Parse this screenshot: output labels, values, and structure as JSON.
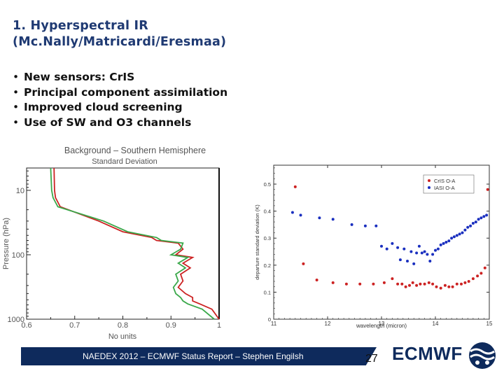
{
  "slide": {
    "title_line1": "1. Hyperspectral IR",
    "title_line2": "(Mc.Nally/Matricardi/Eresmaa)",
    "bullets": [
      "New sensors: CrIS",
      "Principal component assimilation",
      "Improved cloud screening",
      "Use of SW and O3 channels"
    ]
  },
  "footer": {
    "text": "NAEDEX 2012 – ECMWF Status Report – Stephen Engilsh",
    "page_number": "27",
    "brand": "ECMWF"
  },
  "colors": {
    "navy": "#0e2a5c",
    "title": "#1f3a73",
    "red_series": "#cc2222",
    "green_series": "#3aa84a",
    "blue_series": "#1a2fbf"
  },
  "icons": [
    "ecmwf-logo-icon"
  ],
  "chart_data": [
    {
      "type": "line",
      "title": "Background – Southern Hemisphere",
      "subtitle": "Standard Deviation",
      "xlabel": "No units",
      "ylabel": "Pressure (hPa)",
      "x_ticks": [
        "0.6",
        "0.7",
        "0.8",
        "0.9",
        "1"
      ],
      "y_ticks": [
        "10",
        "100",
        "1000"
      ],
      "xlim": [
        0.6,
        1.0
      ],
      "ylim": [
        1000,
        4.5
      ],
      "y_scale": "log",
      "reference_line_x": 1.0,
      "series": [
        {
          "color": "#cc2222",
          "points": [
            [
              0.657,
              4.5
            ],
            [
              0.658,
              10
            ],
            [
              0.66,
              13
            ],
            [
              0.67,
              18
            ],
            [
              0.75,
              30
            ],
            [
              0.8,
              44
            ],
            [
              0.86,
              54
            ],
            [
              0.87,
              60
            ],
            [
              0.915,
              66
            ],
            [
              0.925,
              82
            ],
            [
              0.91,
              100
            ],
            [
              0.945,
              110
            ],
            [
              0.925,
              135
            ],
            [
              0.94,
              160
            ],
            [
              0.92,
              200
            ],
            [
              0.925,
              255
            ],
            [
              0.915,
              320
            ],
            [
              0.93,
              400
            ],
            [
              0.945,
              460
            ],
            [
              0.945,
              520
            ],
            [
              0.96,
              580
            ],
            [
              0.985,
              700
            ],
            [
              1.0,
              1000
            ]
          ]
        },
        {
          "color": "#3aa84a",
          "points": [
            [
              0.65,
              4.5
            ],
            [
              0.652,
              10
            ],
            [
              0.655,
              13
            ],
            [
              0.665,
              18
            ],
            [
              0.76,
              30
            ],
            [
              0.81,
              44
            ],
            [
              0.87,
              54
            ],
            [
              0.88,
              60
            ],
            [
              0.925,
              66
            ],
            [
              0.92,
              82
            ],
            [
              0.9,
              100
            ],
            [
              0.935,
              110
            ],
            [
              0.915,
              135
            ],
            [
              0.93,
              160
            ],
            [
              0.91,
              200
            ],
            [
              0.915,
              255
            ],
            [
              0.905,
              320
            ],
            [
              0.91,
              400
            ],
            [
              0.92,
              460
            ],
            [
              0.925,
              520
            ],
            [
              0.935,
              580
            ],
            [
              0.965,
              700
            ],
            [
              0.99,
              1000
            ]
          ]
        }
      ]
    },
    {
      "type": "scatter",
      "xlabel": "wavelength (micron)",
      "ylabel": "departure standard deviation (K)",
      "x_ticks": [
        "11",
        "12",
        "13",
        "14",
        "15"
      ],
      "y_ticks": [
        "0",
        "0.1",
        "0.2",
        "0.3",
        "0.4",
        "0.5"
      ],
      "xlim": [
        11,
        15
      ],
      "ylim": [
        0,
        0.57
      ],
      "legend": "top-right",
      "series": [
        {
          "name": "CrIS O-A",
          "color": "#cc2222",
          "points": [
            [
              11.4,
              0.49
            ],
            [
              11.55,
              0.205
            ],
            [
              11.8,
              0.145
            ],
            [
              12.1,
              0.135
            ],
            [
              12.35,
              0.13
            ],
            [
              12.6,
              0.13
            ],
            [
              12.85,
              0.13
            ],
            [
              13.05,
              0.135
            ],
            [
              13.2,
              0.15
            ],
            [
              13.3,
              0.13
            ],
            [
              13.38,
              0.13
            ],
            [
              13.45,
              0.12
            ],
            [
              13.52,
              0.125
            ],
            [
              13.58,
              0.135
            ],
            [
              13.65,
              0.125
            ],
            [
              13.72,
              0.13
            ],
            [
              13.8,
              0.13
            ],
            [
              13.88,
              0.135
            ],
            [
              13.95,
              0.13
            ],
            [
              14.02,
              0.12
            ],
            [
              14.1,
              0.115
            ],
            [
              14.18,
              0.125
            ],
            [
              14.25,
              0.12
            ],
            [
              14.32,
              0.12
            ],
            [
              14.4,
              0.13
            ],
            [
              14.48,
              0.13
            ],
            [
              14.55,
              0.135
            ],
            [
              14.62,
              0.14
            ],
            [
              14.7,
              0.15
            ],
            [
              14.78,
              0.16
            ],
            [
              14.85,
              0.17
            ],
            [
              14.92,
              0.19
            ],
            [
              14.97,
              0.48
            ]
          ]
        },
        {
          "name": "IASI O-A",
          "color": "#1a2fbf",
          "points": [
            [
              11.35,
              0.395
            ],
            [
              11.5,
              0.385
            ],
            [
              11.85,
              0.375
            ],
            [
              12.1,
              0.37
            ],
            [
              12.45,
              0.35
            ],
            [
              12.7,
              0.345
            ],
            [
              12.9,
              0.345
            ],
            [
              13.0,
              0.27
            ],
            [
              13.1,
              0.26
            ],
            [
              13.2,
              0.28
            ],
            [
              13.3,
              0.265
            ],
            [
              13.35,
              0.22
            ],
            [
              13.42,
              0.26
            ],
            [
              13.48,
              0.215
            ],
            [
              13.55,
              0.25
            ],
            [
              13.6,
              0.205
            ],
            [
              13.65,
              0.245
            ],
            [
              13.7,
              0.27
            ],
            [
              13.75,
              0.245
            ],
            [
              13.8,
              0.25
            ],
            [
              13.85,
              0.24
            ],
            [
              13.9,
              0.215
            ],
            [
              13.95,
              0.24
            ],
            [
              14.0,
              0.255
            ],
            [
              14.05,
              0.26
            ],
            [
              14.1,
              0.275
            ],
            [
              14.15,
              0.28
            ],
            [
              14.2,
              0.285
            ],
            [
              14.25,
              0.29
            ],
            [
              14.3,
              0.3
            ],
            [
              14.35,
              0.305
            ],
            [
              14.4,
              0.31
            ],
            [
              14.45,
              0.315
            ],
            [
              14.5,
              0.32
            ],
            [
              14.55,
              0.33
            ],
            [
              14.6,
              0.34
            ],
            [
              14.65,
              0.345
            ],
            [
              14.7,
              0.355
            ],
            [
              14.75,
              0.36
            ],
            [
              14.8,
              0.37
            ],
            [
              14.85,
              0.375
            ],
            [
              14.9,
              0.38
            ],
            [
              14.95,
              0.385
            ]
          ]
        }
      ]
    }
  ]
}
